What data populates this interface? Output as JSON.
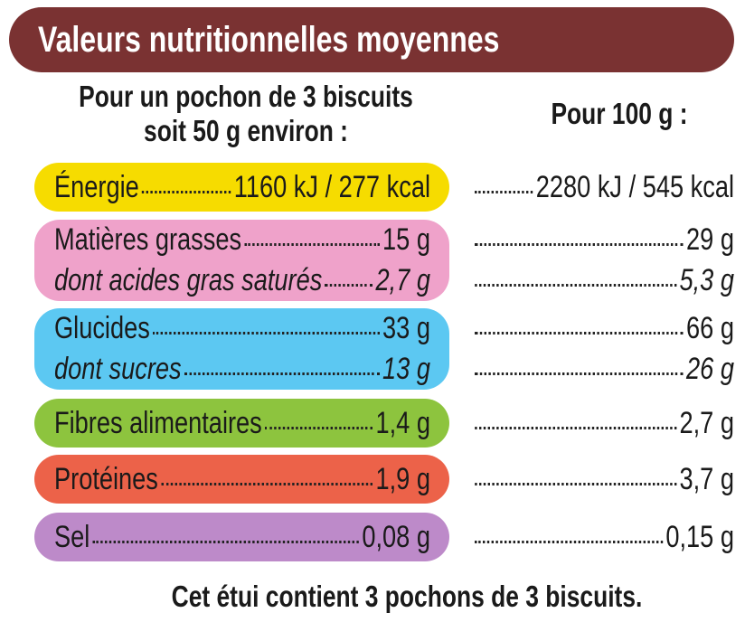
{
  "header": {
    "title": "Valeurs nutritionnelles moyennes",
    "portion_heading": [
      "Pour un pochon de 3 biscuits",
      "soit 50 g environ :"
    ],
    "per100_heading": "Pour 100 g :"
  },
  "rows": [
    {
      "label": "Énergie",
      "portion": "1160 kJ / 277 kcal",
      "per100": "2280 kJ / 545 kcal"
    },
    {
      "label": "Matières grasses",
      "portion": "15 g",
      "per100": "29 g",
      "sub": {
        "label": "dont acides gras saturés",
        "portion": "2,7 g",
        "per100": "5,3 g"
      }
    },
    {
      "label": "Glucides",
      "portion": "33 g",
      "per100": "66 g",
      "sub": {
        "label": "dont sucres",
        "portion": "13 g",
        "per100": "26 g"
      }
    },
    {
      "label": "Fibres alimentaires",
      "portion": "1,4 g",
      "per100": "2,7 g"
    },
    {
      "label": "Protéines",
      "portion": "1,9 g",
      "per100": "3,7 g"
    },
    {
      "label": "Sel",
      "portion": "0,08 g",
      "per100": "0,15 g"
    }
  ],
  "footer": "Cet étui contient 3 pochons de 3 biscuits."
}
